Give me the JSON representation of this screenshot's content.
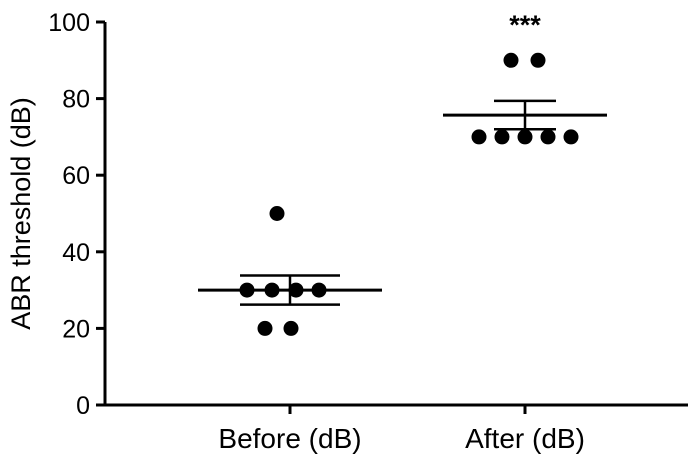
{
  "chart_data": {
    "type": "scatter",
    "title": "",
    "ylabel": "ABR threshold (dB)",
    "xlabel": "",
    "ylim": [
      0,
      100
    ],
    "yticks": [
      0,
      20,
      40,
      60,
      80,
      100
    ],
    "grid": false,
    "legend": "none",
    "marker_color": "#000000",
    "background": "#ffffff",
    "categories": [
      "Before (dB)",
      "After (dB)"
    ],
    "groups": [
      {
        "label": "Before (dB)",
        "points": [
          50,
          30,
          30,
          30,
          30,
          20,
          20
        ],
        "jitter": [
          -13,
          -43,
          -18,
          6,
          29,
          -25,
          1
        ],
        "mean": 30,
        "sem": 3.8,
        "mean_halfwidth": 92,
        "cap_halfwidth": 50,
        "significance": ""
      },
      {
        "label": "After (dB)",
        "points": [
          90,
          90,
          70,
          70,
          70,
          70,
          70
        ],
        "jitter": [
          -14,
          13,
          -46,
          -23,
          0,
          23,
          46
        ],
        "mean": 75.7,
        "sem": 3.7,
        "mean_halfwidth": 82,
        "cap_halfwidth": 31,
        "significance": "***"
      }
    ]
  }
}
